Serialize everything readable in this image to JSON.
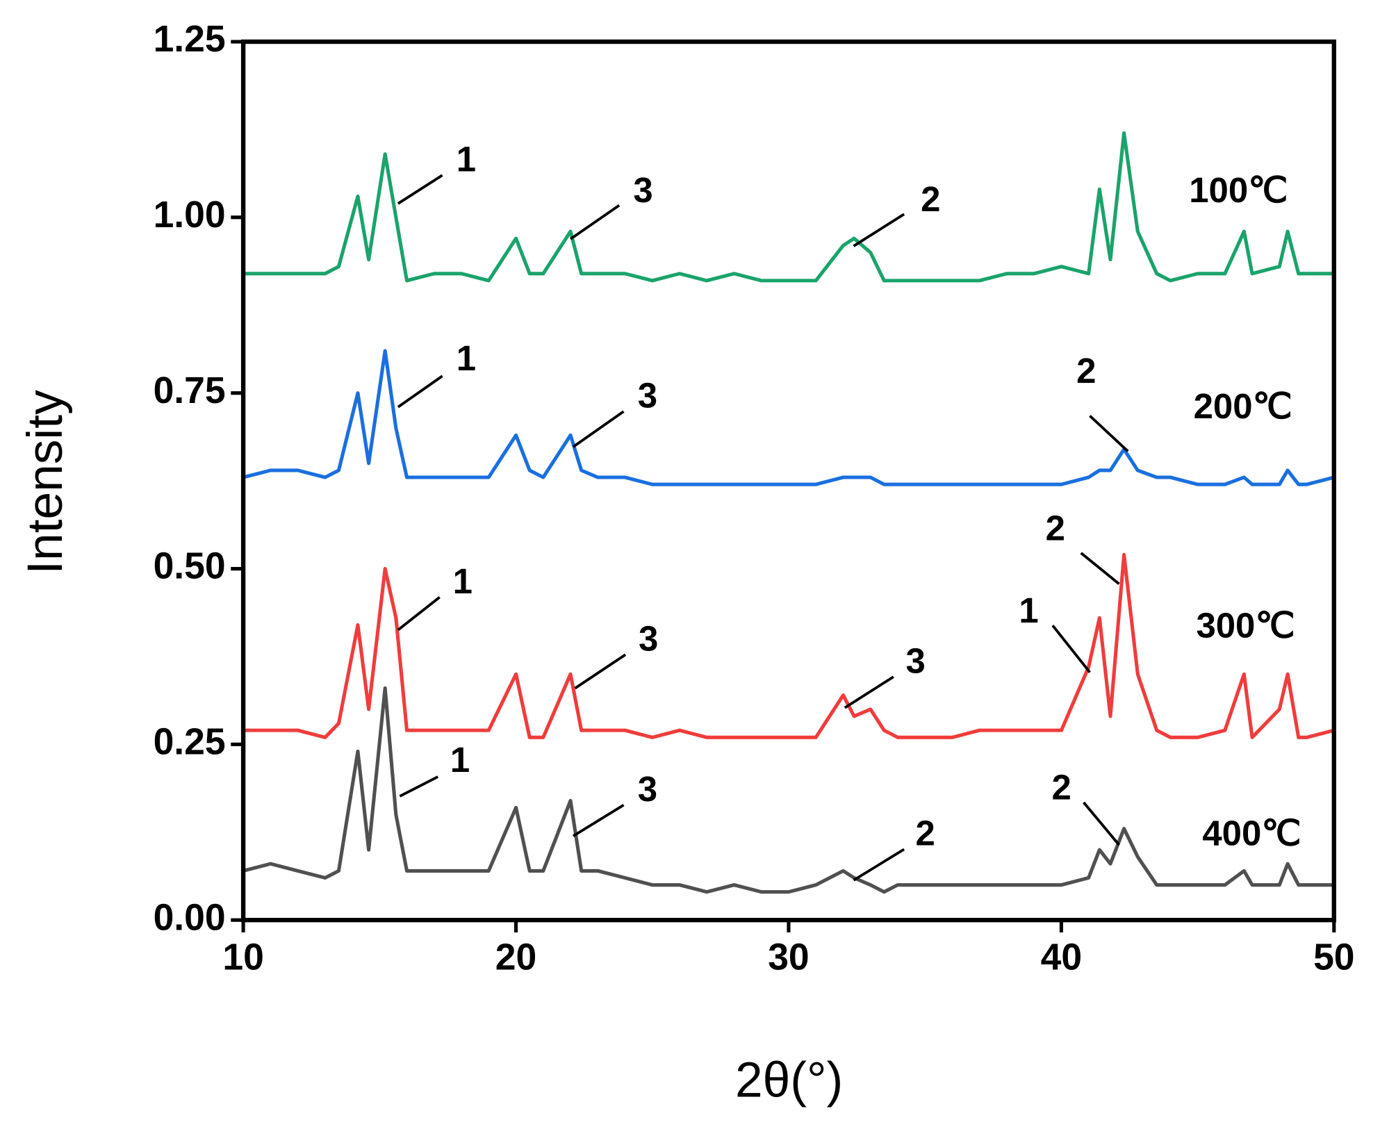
{
  "chart_data": {
    "type": "line",
    "x_label": "2θ(°)",
    "y_label": "Intensity",
    "x": [
      10,
      11,
      12,
      13,
      13.5,
      14.2,
      14.6,
      15.2,
      15.6,
      16,
      17,
      18,
      19,
      20,
      20.5,
      21,
      22,
      22.4,
      23,
      24,
      25,
      26,
      27,
      28,
      29,
      30,
      31,
      32,
      32.4,
      33,
      33.5,
      34,
      35,
      36,
      37,
      38,
      39,
      40,
      41,
      41.4,
      41.8,
      42.3,
      42.8,
      43.5,
      44,
      45,
      46,
      46.7,
      47,
      48,
      48.3,
      48.7,
      49,
      50
    ],
    "series": [
      {
        "name": "100℃",
        "color": "#1aa36b",
        "values": [
          0.92,
          0.92,
          0.92,
          0.92,
          0.93,
          1.03,
          0.94,
          1.09,
          1.0,
          0.91,
          0.92,
          0.92,
          0.91,
          0.97,
          0.92,
          0.92,
          0.98,
          0.92,
          0.92,
          0.92,
          0.91,
          0.92,
          0.91,
          0.92,
          0.91,
          0.91,
          0.91,
          0.96,
          0.97,
          0.95,
          0.91,
          0.91,
          0.91,
          0.91,
          0.91,
          0.92,
          0.92,
          0.93,
          0.92,
          1.04,
          0.94,
          1.12,
          0.98,
          0.92,
          0.91,
          0.92,
          0.92,
          0.98,
          0.92,
          0.93,
          0.98,
          0.92,
          0.92,
          0.92
        ]
      },
      {
        "name": "200℃",
        "color": "#1a6fdf",
        "values": [
          0.63,
          0.64,
          0.64,
          0.63,
          0.64,
          0.75,
          0.65,
          0.81,
          0.7,
          0.63,
          0.63,
          0.63,
          0.63,
          0.69,
          0.64,
          0.63,
          0.69,
          0.64,
          0.63,
          0.63,
          0.62,
          0.62,
          0.62,
          0.62,
          0.62,
          0.62,
          0.62,
          0.63,
          0.63,
          0.63,
          0.62,
          0.62,
          0.62,
          0.62,
          0.62,
          0.62,
          0.62,
          0.62,
          0.63,
          0.64,
          0.64,
          0.67,
          0.64,
          0.63,
          0.63,
          0.62,
          0.62,
          0.63,
          0.62,
          0.62,
          0.64,
          0.62,
          0.62,
          0.63
        ]
      },
      {
        "name": "300℃",
        "color": "#f03c3c",
        "values": [
          0.27,
          0.27,
          0.27,
          0.26,
          0.28,
          0.42,
          0.3,
          0.5,
          0.43,
          0.27,
          0.27,
          0.27,
          0.27,
          0.35,
          0.26,
          0.26,
          0.35,
          0.27,
          0.27,
          0.27,
          0.26,
          0.27,
          0.26,
          0.26,
          0.26,
          0.26,
          0.26,
          0.32,
          0.29,
          0.3,
          0.27,
          0.26,
          0.26,
          0.26,
          0.27,
          0.27,
          0.27,
          0.27,
          0.36,
          0.43,
          0.29,
          0.52,
          0.35,
          0.27,
          0.26,
          0.26,
          0.27,
          0.35,
          0.26,
          0.3,
          0.35,
          0.26,
          0.26,
          0.27
        ]
      },
      {
        "name": "400℃",
        "color": "#505050",
        "values": [
          0.07,
          0.08,
          0.07,
          0.06,
          0.07,
          0.24,
          0.1,
          0.33,
          0.15,
          0.07,
          0.07,
          0.07,
          0.07,
          0.16,
          0.07,
          0.07,
          0.17,
          0.07,
          0.07,
          0.06,
          0.05,
          0.05,
          0.04,
          0.05,
          0.04,
          0.04,
          0.05,
          0.07,
          0.06,
          0.05,
          0.04,
          0.05,
          0.05,
          0.05,
          0.05,
          0.05,
          0.05,
          0.05,
          0.06,
          0.1,
          0.08,
          0.13,
          0.09,
          0.05,
          0.05,
          0.05,
          0.05,
          0.07,
          0.05,
          0.05,
          0.08,
          0.05,
          0.05,
          0.05
        ]
      }
    ],
    "annotations": [
      "1",
      "3",
      "2",
      "1",
      "3",
      "2",
      "1",
      "3",
      "2",
      "1",
      "3",
      "1",
      "3",
      "2",
      "2"
    ],
    "xlim": [
      10,
      50
    ],
    "xticks": [
      10,
      20,
      30,
      40,
      50
    ],
    "ylim": [
      0,
      1.25
    ],
    "yticks": [
      {
        "value": 0,
        "label": "0.00"
      },
      {
        "value": 0.25,
        "label": "0.25"
      },
      {
        "value": 0.5,
        "label": "0.50"
      },
      {
        "value": 0.75,
        "label": "0.75"
      },
      {
        "value": 1,
        "label": "1.00"
      },
      {
        "value": 1.25,
        "label": "1.25"
      }
    ],
    "grid": false
  }
}
